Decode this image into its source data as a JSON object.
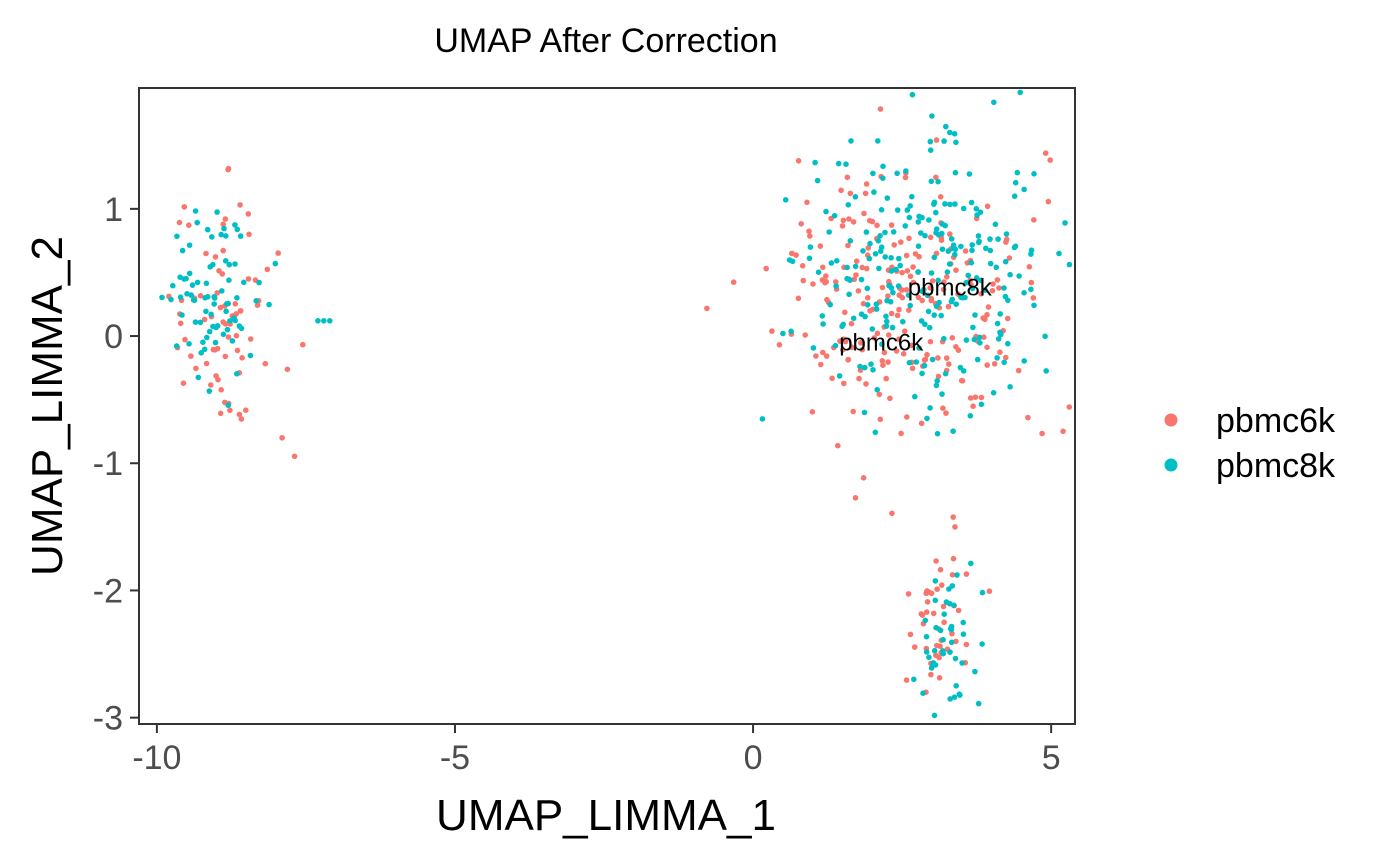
{
  "chart_data": {
    "type": "scatter",
    "title": "UMAP After Correction",
    "xlabel": "UMAP_LIMMA_1",
    "ylabel": "UMAP_LIMMA_2",
    "xlim": [
      -10.3,
      5.4
    ],
    "ylim": [
      -3.05,
      1.95
    ],
    "x_ticks": [
      -10,
      -5,
      0,
      5
    ],
    "x_tick_labels": [
      "-10",
      "-5",
      "0",
      "5"
    ],
    "y_ticks": [
      1,
      0,
      -1,
      -2,
      -3
    ],
    "y_tick_labels": [
      "1",
      "0",
      "-1",
      "-2",
      "-3"
    ],
    "grid": false,
    "legend_position": "right",
    "series": [
      {
        "name": "pbmc6k",
        "color": "#F8766D",
        "clusters": [
          {
            "region": "left",
            "cx": -8.8,
            "cy": 0.1,
            "sx": 0.45,
            "sy": 0.45,
            "n": 70
          },
          {
            "region": "right-upper",
            "cx": 2.6,
            "cy": 0.3,
            "sx": 1.1,
            "sy": 0.55,
            "n": 230
          },
          {
            "region": "right-lower",
            "cx": 3.1,
            "cy": -2.3,
            "sx": 0.25,
            "sy": 0.3,
            "n": 45
          }
        ],
        "points": [
          [
            -8.85,
            0.92
          ],
          [
            -9.6,
            0.1
          ],
          [
            -7.9,
            -0.8
          ],
          [
            4.7,
            0.3
          ],
          [
            2.9,
            -2.8
          ]
        ]
      },
      {
        "name": "pbmc8k",
        "color": "#00BFC4",
        "clusters": [
          {
            "region": "left",
            "cx": -9.0,
            "cy": 0.35,
            "sx": 0.4,
            "sy": 0.35,
            "n": 80
          },
          {
            "region": "right-upper",
            "cx": 2.8,
            "cy": 0.5,
            "sx": 1.1,
            "sy": 0.55,
            "n": 250
          },
          {
            "region": "right-lower",
            "cx": 3.3,
            "cy": -2.4,
            "sx": 0.25,
            "sy": 0.25,
            "n": 45
          }
        ],
        "points": [
          [
            -7.3,
            0.12
          ],
          [
            -7.2,
            0.12
          ],
          [
            -7.1,
            0.12
          ],
          [
            3.0,
            1.73
          ],
          [
            0.5,
            0.02
          ],
          [
            3.3,
            1.6
          ]
        ]
      }
    ],
    "annotations": [
      {
        "text": "pbmc8k",
        "x": 3.3,
        "y": 0.38
      },
      {
        "text": "pbmc6k",
        "x": 2.15,
        "y": -0.05
      }
    ]
  }
}
